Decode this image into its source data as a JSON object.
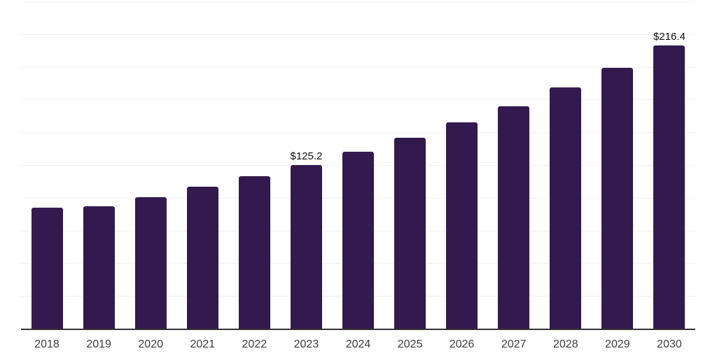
{
  "chart_data": {
    "type": "bar",
    "title": "",
    "xlabel": "",
    "ylabel": "",
    "categories": [
      "2018",
      "2019",
      "2020",
      "2021",
      "2022",
      "2023",
      "2024",
      "2025",
      "2026",
      "2027",
      "2028",
      "2029",
      "2030"
    ],
    "values": [
      92.3,
      93.5,
      100.5,
      108.2,
      116.6,
      125.2,
      134.9,
      145.9,
      157.6,
      169.8,
      184.2,
      199.5,
      216.4
    ],
    "data_labels": [
      "",
      "",
      "",
      "",
      "",
      "$125.2",
      "",
      "",
      "",
      "",
      "",
      "",
      "$216.4"
    ],
    "ylim": [
      0,
      250
    ],
    "grid": true,
    "grid_step": 25,
    "legend": false,
    "colors": {
      "background": "#ffffff",
      "bar": "#331a4e",
      "gridline": "#f1f1f1",
      "axis_line": "#333333",
      "tick_label": "#3d3d3d",
      "data_label": "#0f0f0f"
    }
  }
}
